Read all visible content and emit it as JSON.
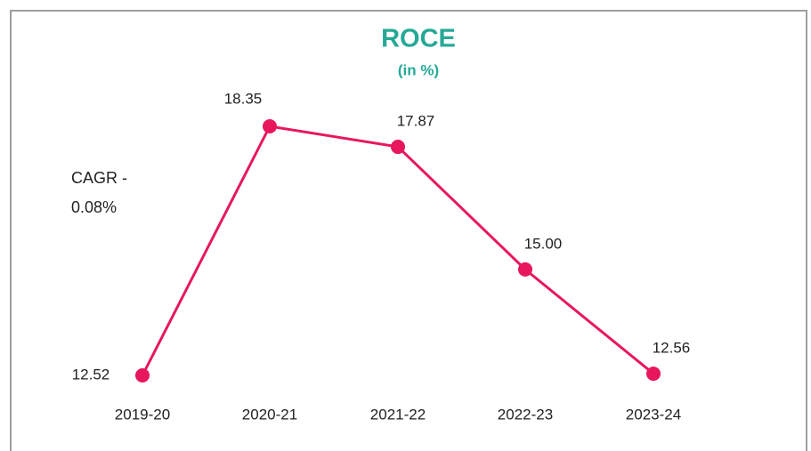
{
  "chart_data": {
    "type": "line",
    "title": "ROCE",
    "subtitle": "(in %)",
    "annotation": "CAGR - 0.08%",
    "categories": [
      "2019-20",
      "2020-21",
      "2021-22",
      "2022-23",
      "2023-24"
    ],
    "values": [
      12.52,
      18.35,
      17.87,
      15.0,
      12.56
    ],
    "value_labels": [
      "12.52",
      "18.35",
      "17.87",
      "15.00",
      "12.56"
    ],
    "color": "#e8175d"
  }
}
